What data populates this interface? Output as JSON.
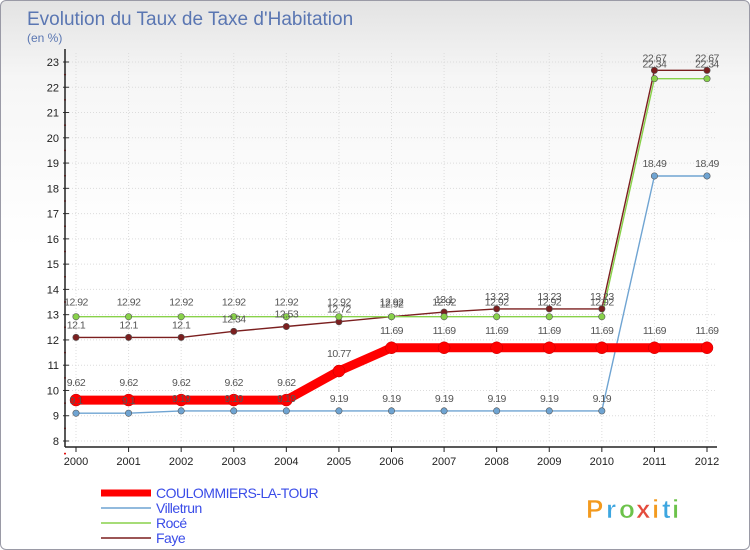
{
  "chart_data": {
    "type": "line",
    "title": "Evolution du Taux de Taxe d'Habitation",
    "subtitle": "(en %)",
    "x": [
      "2000",
      "2001",
      "2002",
      "2003",
      "2004",
      "2005",
      "2006",
      "2007",
      "2008",
      "2009",
      "2010",
      "2011",
      "2012"
    ],
    "y_ticks": [
      "8",
      "9",
      "10",
      "11",
      "12",
      "13",
      "14",
      "15",
      "16",
      "17",
      "18",
      "19",
      "20",
      "21",
      "22",
      "23"
    ],
    "ylim": [
      8,
      23
    ],
    "series": [
      {
        "name": "COULOMMIERS-LA-TOUR",
        "color": "#ff0000",
        "values": [
          9.62,
          9.62,
          9.62,
          9.62,
          9.62,
          10.77,
          11.69,
          11.69,
          11.69,
          11.69,
          11.69,
          11.69,
          11.69
        ],
        "labels": [
          "9.62",
          "9.62",
          "9.62",
          "9.62",
          "9.62",
          "10.77",
          "11.69",
          "11.69",
          "11.69",
          "11.69",
          "11.69",
          "11.69",
          "11.69"
        ]
      },
      {
        "name": "Villetrun",
        "color": "#6fa4d2",
        "values": [
          9.1,
          9.1,
          9.19,
          9.19,
          9.19,
          9.19,
          9.19,
          9.19,
          9.19,
          9.19,
          9.19,
          18.49,
          18.49
        ],
        "labels": [
          "9.1",
          "9.1",
          "9.19",
          "9.19",
          "9.19",
          "9.19",
          "9.19",
          "9.19",
          "9.19",
          "9.19",
          "9.19",
          "18.49",
          "18.49"
        ]
      },
      {
        "name": "Rocé",
        "color": "#88d14a",
        "values": [
          12.92,
          12.92,
          12.92,
          12.92,
          12.92,
          12.92,
          12.92,
          12.92,
          12.92,
          12.92,
          12.92,
          22.34,
          22.34
        ],
        "labels": [
          "12.92",
          "12.92",
          "12.92",
          "12.92",
          "12.92",
          "12.92",
          "12.92",
          "12.92",
          "12.92",
          "12.92",
          "12.92",
          "22.34",
          "22.34"
        ]
      },
      {
        "name": "Faye",
        "color": "#7b1f1f",
        "values": [
          12.1,
          12.1,
          12.1,
          12.34,
          12.53,
          12.72,
          12.92,
          13.1,
          13.23,
          13.23,
          13.23,
          22.67,
          22.67
        ],
        "labels": [
          "12.1",
          "12.1",
          "12.1",
          "12.34",
          "12.53",
          "12.72",
          "12.92",
          "13.1",
          "13.23",
          "13.23",
          "13.23",
          "22.67",
          "22.67"
        ]
      }
    ]
  },
  "legend": {
    "items": [
      {
        "label": "COULOMMIERS-LA-TOUR",
        "color": "#ff0000"
      },
      {
        "label": "Villetrun",
        "color": "#6fa4d2"
      },
      {
        "label": "Rocé",
        "color": "#88d14a"
      },
      {
        "label": "Faye",
        "color": "#7b1f1f"
      }
    ]
  },
  "logo": {
    "letters": [
      "P",
      "r",
      "o",
      "x",
      "i",
      "t",
      "i"
    ],
    "colors": [
      "#f39a1e",
      "#3da6e0",
      "#6cc24a",
      "#e44b3c",
      "#f39a1e",
      "#3da6e0",
      "#6cc24a"
    ]
  }
}
